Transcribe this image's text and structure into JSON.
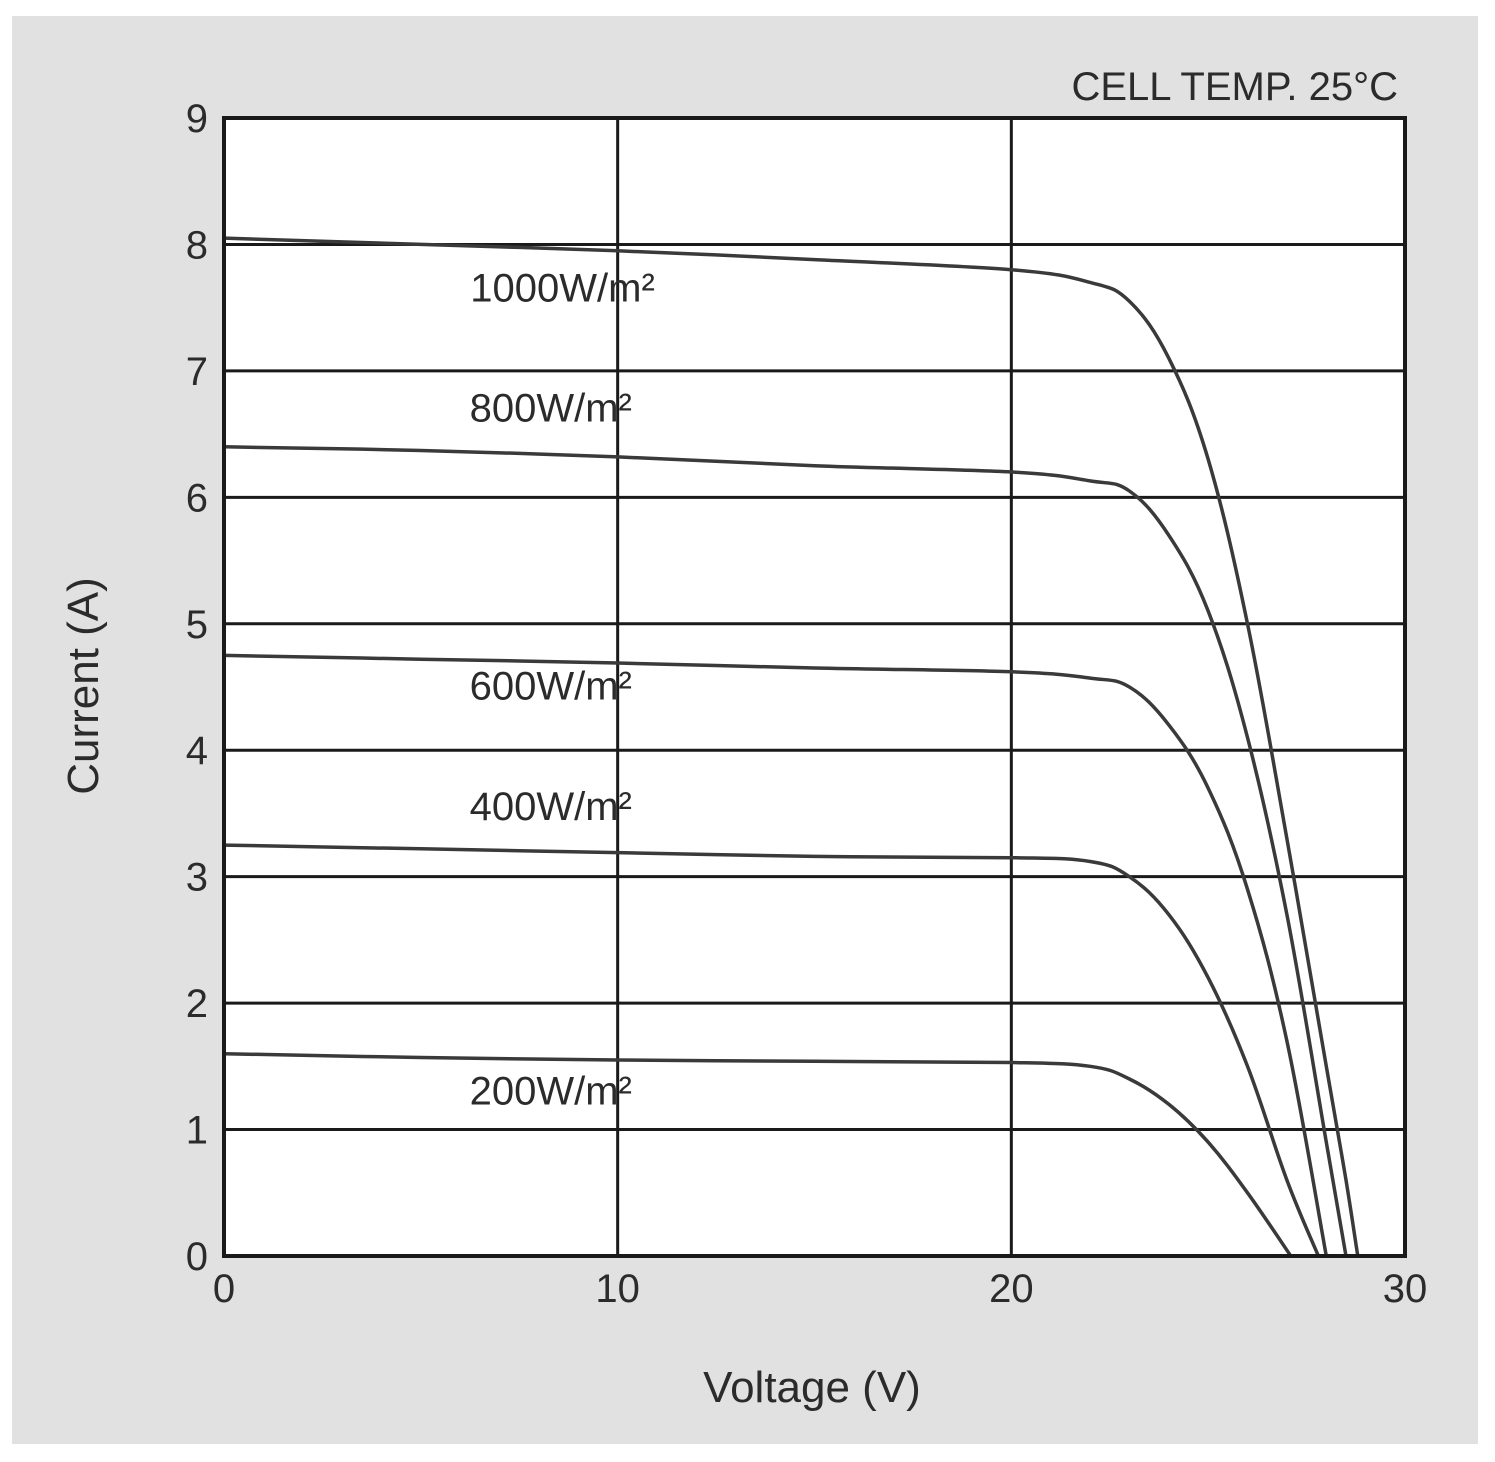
{
  "colors": {
    "page_background": "#ffffff",
    "panel_background": "#e1e1e1",
    "plot_background": "#ffffff",
    "grid": "#1a1a1a",
    "curve": "#3a3a3a",
    "text": "#2b2b2b"
  },
  "chart_data": {
    "type": "line",
    "title": "",
    "annotation": "CELL TEMP. 25°C",
    "xlabel": "Voltage (V)",
    "ylabel": "Current (A)",
    "xlim": [
      0,
      30
    ],
    "ylim": [
      0,
      9
    ],
    "xticks": [
      0,
      10,
      20,
      30
    ],
    "yticks": [
      0,
      1,
      2,
      3,
      4,
      5,
      6,
      7,
      8,
      9
    ],
    "grid": true,
    "legend": "inline labels",
    "series": [
      {
        "name": "1000W/m²",
        "x": [
          0,
          5,
          10,
          15,
          20,
          22,
          23,
          24,
          25,
          26,
          27,
          28,
          28.5,
          28.8
        ],
        "y": [
          8.05,
          8.0,
          7.95,
          7.88,
          7.8,
          7.7,
          7.55,
          7.1,
          6.3,
          5.0,
          3.3,
          1.5,
          0.6,
          0
        ]
      },
      {
        "name": "800W/m²",
        "x": [
          0,
          5,
          10,
          15,
          20,
          22,
          23,
          24,
          25,
          26,
          27,
          28,
          28.5
        ],
        "y": [
          6.4,
          6.37,
          6.32,
          6.25,
          6.2,
          6.13,
          6.05,
          5.7,
          5.1,
          4.1,
          2.7,
          0.9,
          0
        ]
      },
      {
        "name": "600W/m²",
        "x": [
          0,
          5,
          10,
          15,
          20,
          22,
          23,
          24,
          25,
          26,
          27,
          28
        ],
        "y": [
          4.75,
          4.72,
          4.69,
          4.65,
          4.62,
          4.57,
          4.5,
          4.2,
          3.7,
          2.9,
          1.7,
          0
        ]
      },
      {
        "name": "400W/m²",
        "x": [
          0,
          5,
          10,
          15,
          20,
          22,
          23,
          24,
          25,
          26,
          27,
          27.8
        ],
        "y": [
          3.25,
          3.22,
          3.19,
          3.16,
          3.15,
          3.12,
          3.0,
          2.7,
          2.2,
          1.5,
          0.6,
          0
        ]
      },
      {
        "name": "200W/m²",
        "x": [
          0,
          5,
          10,
          15,
          20,
          22,
          23,
          24,
          25,
          26,
          27.1
        ],
        "y": [
          1.6,
          1.57,
          1.55,
          1.54,
          1.53,
          1.5,
          1.4,
          1.2,
          0.9,
          0.5,
          0
        ]
      }
    ]
  }
}
